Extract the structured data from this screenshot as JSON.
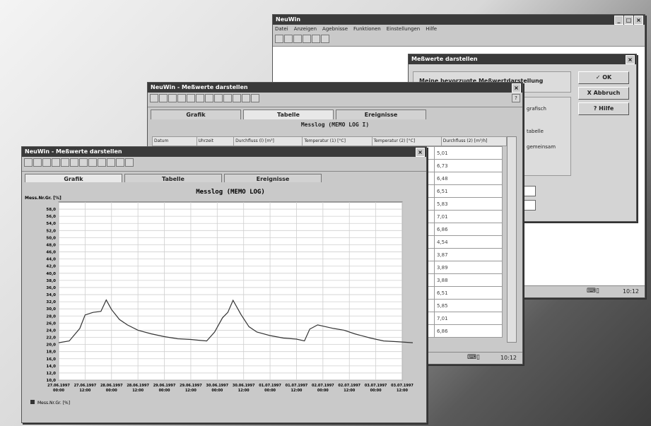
{
  "main_window": {
    "title": "NeuWin",
    "menu": [
      "Datei",
      "Anzeigen",
      "Agebnisse",
      "Funktionen",
      "Einstellungen",
      "Hilfe"
    ],
    "status_time": "10:12"
  },
  "dialog": {
    "title": "Meßwerte darstellen",
    "option_label": "Meine bevorzugte Meßwertdarstellung",
    "ok_label": "✓ OK",
    "cancel_label": "X Abbruch",
    "help_label": "? Hilfe",
    "side_labels": [
      "grafisch",
      "tabelle",
      "gemeinsam"
    ]
  },
  "table_window": {
    "title": "NeuWin - Meßwerte darstellen",
    "tabs": [
      "Grafik",
      "Tabelle",
      "Ereignisse"
    ],
    "heading": "Messlog (MEMO LOG I)",
    "columns": [
      "Datum",
      "Uhrzeit",
      "Durchfluss (l) [m³]",
      "Temperatur (1) [°C]",
      "Temperatur (2) [°C]",
      "Durchfluss (2) [m³/h]"
    ],
    "values": [
      "5,01",
      "6,73",
      "6,48",
      "6,51",
      "5,83",
      "7,01",
      "6,86",
      "4,54",
      "3,87",
      "3,89",
      "3,88",
      "6,51",
      "5,85",
      "7,01",
      "6,86"
    ],
    "status_time": "10:12"
  },
  "chart_window": {
    "title": "NeuWin - Meßwerte darstellen",
    "tabs": [
      "Grafik",
      "Tabelle",
      "Ereignisse"
    ],
    "legend": "Mess.Nr.Gr. [%]"
  },
  "chart_data": {
    "type": "line",
    "title": "Messlog (MEMO LOG)",
    "ylabel": "Mess.Nr.Gr. [%]",
    "ylim": [
      10,
      60
    ],
    "yticks": [
      "10,0",
      "12,0",
      "14,0",
      "16,0",
      "18,0",
      "20,0",
      "22,0",
      "24,0",
      "26,0",
      "28,0",
      "30,0",
      "32,0",
      "34,0",
      "36,0",
      "38,0",
      "40,0",
      "42,0",
      "44,0",
      "46,0",
      "48,0",
      "50,0",
      "52,0",
      "54,0",
      "56,0",
      "58,0"
    ],
    "xticks": [
      "27.06.1997 00:00",
      "27.06.1997 12:00",
      "28.06.1997 00:00",
      "28.06.1997 12:00",
      "29.06.1997 00:00",
      "29.06.1997 12:00",
      "30.06.1997 00:00",
      "30.06.1997 12:00",
      "01.07.1997 00:00",
      "01.07.1997 12:00",
      "02.07.1997 00:00",
      "02.07.1997 12:00",
      "03.07.1997 00:00",
      "03.07.1997 12:00"
    ],
    "series": [
      {
        "name": "Mess.Nr.Gr. [%]",
        "x": [
          0,
          0.4,
          0.8,
          1.0,
          1.3,
          1.6,
          1.8,
          2.0,
          2.3,
          2.6,
          3.0,
          3.5,
          4.0,
          4.5,
          5.0,
          5.3,
          5.6,
          5.9,
          6.2,
          6.4,
          6.6,
          6.9,
          7.2,
          7.5,
          8.0,
          8.5,
          9.0,
          9.3,
          9.5,
          9.8,
          10.1,
          10.4,
          10.8,
          11.2,
          11.8,
          12.3,
          12.8,
          13.4
        ],
        "y": [
          20.5,
          21.0,
          24.5,
          28.3,
          29.0,
          29.3,
          32.5,
          29.8,
          27.0,
          25.5,
          24.0,
          23.0,
          22.2,
          21.6,
          21.4,
          21.2,
          21.0,
          23.5,
          27.5,
          29.0,
          32.4,
          28.4,
          25.0,
          23.5,
          22.5,
          21.8,
          21.5,
          21.0,
          24.3,
          25.5,
          25.0,
          24.5,
          24.0,
          23.0,
          21.8,
          21.0,
          20.8,
          20.5
        ]
      }
    ]
  }
}
